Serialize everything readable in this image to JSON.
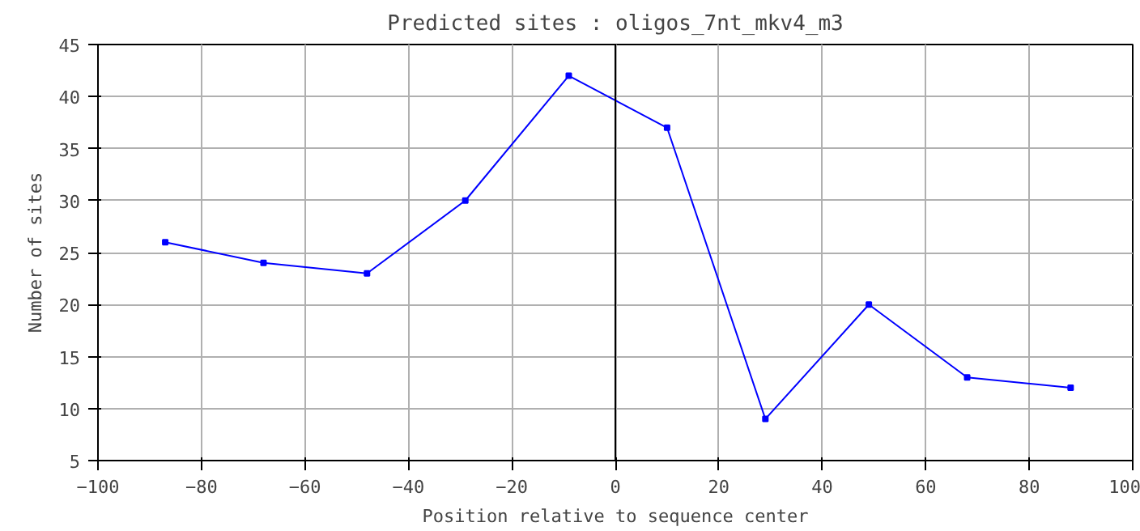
{
  "chart_data": {
    "type": "line",
    "title": "Predicted sites : oligos_7nt_mkv4_m3",
    "xlabel": "Position relative to sequence center",
    "ylabel": "Number of sites",
    "x": [
      -87,
      -68,
      -48,
      -29,
      -9,
      10,
      29,
      49,
      68,
      88
    ],
    "series": [
      {
        "color": "#0000ff",
        "values": [
          26,
          24,
          23,
          30,
          42,
          37,
          9,
          20,
          13,
          12
        ]
      }
    ],
    "xlim": [
      -100,
      100
    ],
    "xticks": [
      -100,
      -80,
      -60,
      -40,
      -20,
      0,
      20,
      40,
      60,
      80,
      100
    ],
    "ylim": [
      5,
      45
    ],
    "yticks": [
      5,
      10,
      15,
      20,
      25,
      30,
      35,
      40,
      45
    ],
    "ref_lines": [
      {
        "axis": "x",
        "value": 0,
        "color": "#000000"
      }
    ],
    "grid": true,
    "marker": "square",
    "line_style": "solid"
  }
}
